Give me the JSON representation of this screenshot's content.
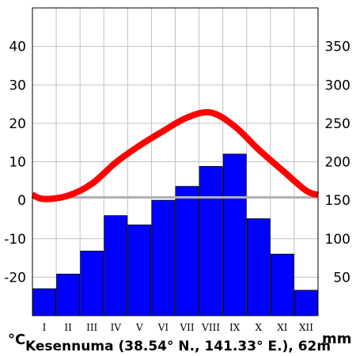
{
  "chart_data": {
    "type": "climate-diagram",
    "title": "Kesennuma (38.54° N., 141.33° E.), 62m",
    "left_axis_unit": "°C",
    "right_axis_unit": "mm",
    "categories": [
      "I",
      "II",
      "III",
      "IV",
      "V",
      "VI",
      "VII",
      "VIII",
      "IX",
      "X",
      "XI",
      "XII"
    ],
    "left_ticks": [
      "40",
      "30",
      "20",
      "10",
      "0",
      "-10",
      "-20"
    ],
    "right_ticks": [
      "350",
      "300",
      "250",
      "200",
      "150",
      "100",
      "50"
    ],
    "left_ylim": [
      -30,
      50
    ],
    "right_ylim": [
      0,
      400
    ],
    "grid": true,
    "series": [
      {
        "axis": "right",
        "kind": "bar",
        "color": "#0000ff",
        "values": [
          35,
          54,
          84,
          130,
          118,
          150,
          168,
          194,
          210,
          126,
          80,
          33
        ]
      },
      {
        "axis": "left",
        "kind": "line",
        "color": "#ff0000",
        "values": [
          0.3,
          1.2,
          4.3,
          9.8,
          14.2,
          18.0,
          21.5,
          22.8,
          19.2,
          13.2,
          7.8,
          2.5
        ]
      }
    ]
  }
}
